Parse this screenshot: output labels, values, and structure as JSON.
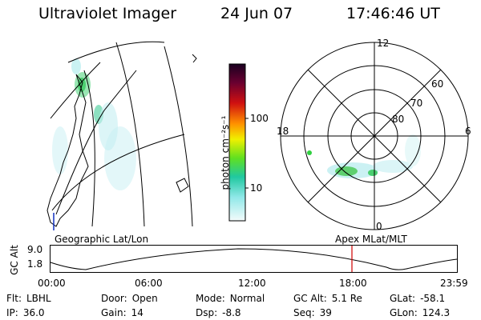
{
  "header": {
    "title": "Ultraviolet Imager",
    "date": "24 Jun 07",
    "time": "17:46:46 UT"
  },
  "colorbar": {
    "unit_label": "photon cm⁻²s⁻¹",
    "ticks": [
      "100",
      "10"
    ]
  },
  "polar": {
    "mlt_labels": [
      "12",
      "18",
      "6",
      "0"
    ],
    "lat_labels": [
      "60",
      "70",
      "80"
    ]
  },
  "map_labels": {
    "left": "Geographic Lat/Lon",
    "right": "Apex MLat/MLT"
  },
  "altitude_plot": {
    "ylabel": "GC Alt",
    "yticks": [
      "9.0",
      "1.8"
    ],
    "xticks": [
      "00:00",
      "06:00",
      "12:00",
      "18:00",
      "23:59"
    ],
    "marker_time": "17:46",
    "marker_color": "#d00000"
  },
  "status": {
    "flt": {
      "label": "Flt:",
      "value": "LBHL"
    },
    "ip": {
      "label": "IP:",
      "value": "36.0"
    },
    "door": {
      "label": "Door:",
      "value": "Open"
    },
    "gain": {
      "label": "Gain:",
      "value": "14"
    },
    "mode": {
      "label": "Mode:",
      "value": "Normal"
    },
    "dsp": {
      "label": "Dsp:",
      "value": "-8.8"
    },
    "gcalt": {
      "label": "GC Alt:",
      "value": "5.1 Re"
    },
    "seq": {
      "label": "Seq:",
      "value": "39"
    },
    "glat": {
      "label": "GLat:",
      "value": "-58.1"
    },
    "glon": {
      "label": "GLon:",
      "value": "124.3"
    }
  }
}
